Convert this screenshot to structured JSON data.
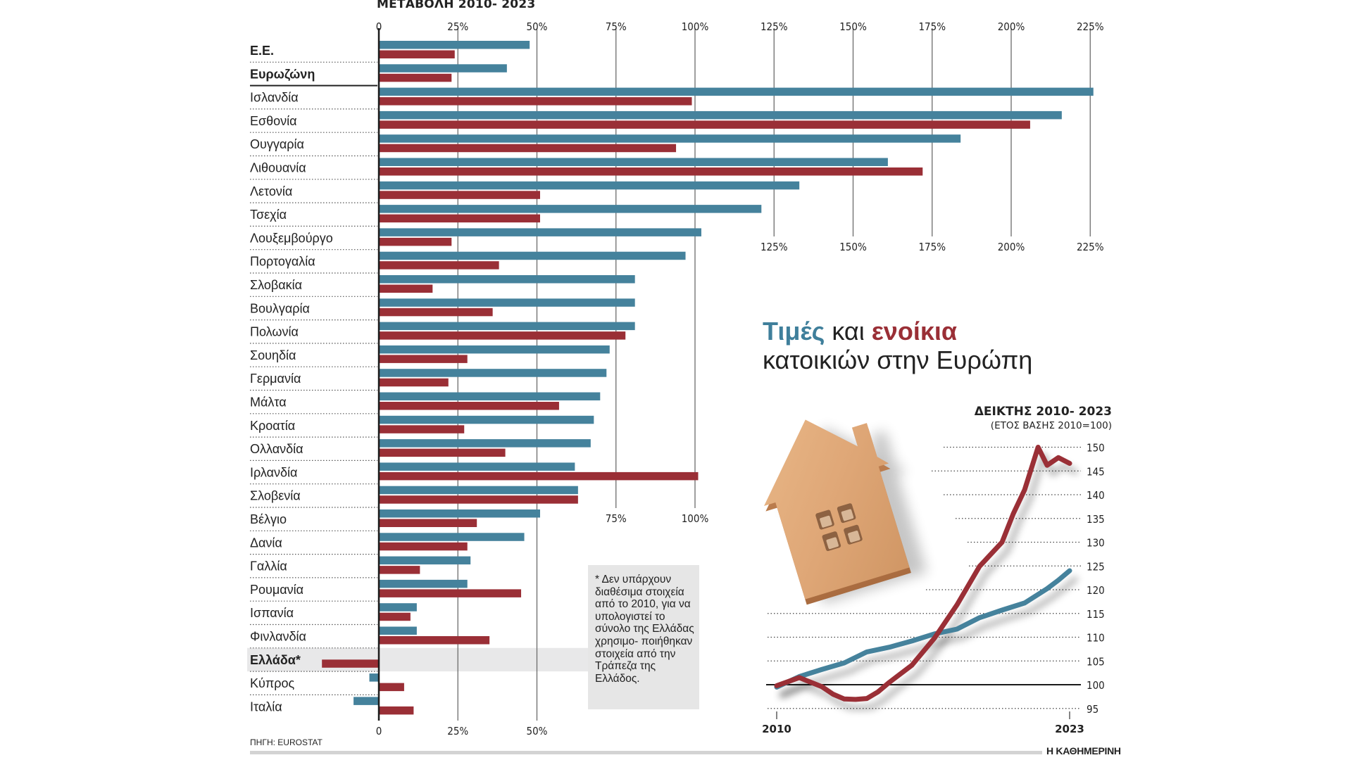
{
  "chart_data": [
    {
      "type": "bar",
      "orientation": "horizontal",
      "title": "ΜΕΤΑΒΟΛΗ 2010- 2023",
      "xlabel": "",
      "ylabel": "",
      "xlim": [
        -20,
        225
      ],
      "xticks": [
        0,
        25,
        50,
        75,
        100,
        125,
        150,
        175,
        200,
        225
      ],
      "xtick_labels": [
        "0",
        "25%",
        "50%",
        "75%",
        "100%",
        "125%",
        "150%",
        "175%",
        "200%",
        "225%"
      ],
      "grid": true,
      "categories": [
        "Ε.Ε.",
        "Ευρωζώνη",
        "Ισλανδία",
        "Εσθονία",
        "Ουγγαρία",
        "Λιθουανία",
        "Λετονία",
        "Τσεχία",
        "Λουξεμβούργο",
        "Πορτογαλία",
        "Σλοβακία",
        "Βουλγαρία",
        "Πολωνία",
        "Σουηδία",
        "Γερμανία",
        "Μάλτα",
        "Κροατία",
        "Ολλανδία",
        "Ιρλανδία",
        "Σλοβενία",
        "Βέλγιο",
        "Δανία",
        "Γαλλία",
        "Ρουμανία",
        "Ισπανία",
        "Φινλανδία",
        "Ελλάδα*",
        "Κύπρος",
        "Ιταλία"
      ],
      "bold_categories": [
        "Ε.Ε.",
        "Ευρωζώνη",
        "Ελλάδα*"
      ],
      "highlight_category": "Ελλάδα*",
      "series": [
        {
          "name": "Τιμές",
          "color": "#45829c",
          "values": [
            47.7,
            40.5,
            226,
            216,
            184,
            161,
            133,
            121,
            102,
            97,
            81,
            81,
            81,
            73,
            72,
            70,
            68,
            67,
            62,
            63,
            51,
            46,
            29,
            28,
            12,
            12,
            null,
            -3,
            -8
          ]
        },
        {
          "name": "Ενοίκια",
          "color": "#9a2f36",
          "values": [
            24,
            23,
            99,
            206,
            94,
            172,
            51,
            51,
            23,
            38,
            17,
            36,
            78,
            28,
            22,
            57,
            27,
            40,
            101,
            63,
            31,
            28,
            13,
            45,
            10,
            35,
            -18,
            8,
            11
          ]
        }
      ],
      "note": "* Δεν υπάρχουν διαθέσιμα στοιχεία από το 2010, για να υπολογιστεί το σύνολο της Ελλάδας χρησιμο- ποιήθηκαν στοιχεία από την Τράπεζα της Ελλάδος.",
      "source": "ΠΗΓΗ: EUROSTAT"
    },
    {
      "type": "line",
      "title": "ΔΕΙΚΤΗΣ 2010- 2023",
      "subtitle": "(ΕΤΟΣ ΒΑΣΗΣ 2010=100)",
      "xlim": [
        2010,
        2023
      ],
      "ylim": [
        95,
        150
      ],
      "xticks": [
        2010,
        2023
      ],
      "xtick_labels": [
        "2010",
        "2023"
      ],
      "yticks": [
        95,
        100,
        105,
        110,
        115,
        120,
        125,
        130,
        135,
        140,
        145,
        150
      ],
      "ytick_labels": [
        "95",
        "100",
        "105",
        "110",
        "115",
        "120",
        "125",
        "130",
        "135",
        "140",
        "145",
        "150"
      ],
      "baseline": 100,
      "grid": true,
      "series": [
        {
          "name": "Τιμές",
          "color": "#45829c",
          "x": [
            2010,
            2011,
            2012,
            2013,
            2014,
            2015,
            2016,
            2017,
            2018,
            2019,
            2020,
            2021,
            2022,
            2022.5,
            2023
          ],
          "y": [
            99.5,
            101.7,
            103.2,
            104.6,
            106.9,
            107.9,
            109.2,
            110.7,
            111.7,
            114.1,
            115.7,
            117.2,
            120.2,
            122,
            124
          ]
        },
        {
          "name": "Ενοίκια",
          "color": "#9a2f36",
          "x": [
            2010,
            2011,
            2012,
            2012.5,
            2013,
            2013.5,
            2014,
            2014.5,
            2015,
            2016,
            2017,
            2018,
            2019,
            2020,
            2020.5,
            2021,
            2021.6,
            2022,
            2022.5,
            2023
          ],
          "y": [
            99.8,
            101.5,
            99.6,
            98,
            97,
            96.9,
            97.1,
            98.5,
            100.5,
            104.1,
            109.8,
            116.8,
            124.9,
            130,
            136,
            141,
            150,
            146.2,
            147.8,
            146.6
          ]
        }
      ]
    }
  ],
  "headline": {
    "word_prices": "Τιμές",
    "word_and": " και ",
    "word_rents": "ενοίκια",
    "line2": "κατοικιών στην Ευρώπη"
  },
  "index_block": {
    "title": "ΔΕΙΚΤΗΣ 2010- 2023",
    "subtitle": "(ΕΤΟΣ ΒΑΣΗΣ 2010=100)"
  },
  "footer": {
    "source": "ΠΗΓΗ: EUROSTAT",
    "brand": "Η ΚΑΘΗΜΕΡΙΝΗ"
  },
  "colors": {
    "prices": "#45829c",
    "rents": "#9a2f36",
    "highlight_band": "#e8e8e9",
    "note_bg": "#e6e6e6"
  }
}
